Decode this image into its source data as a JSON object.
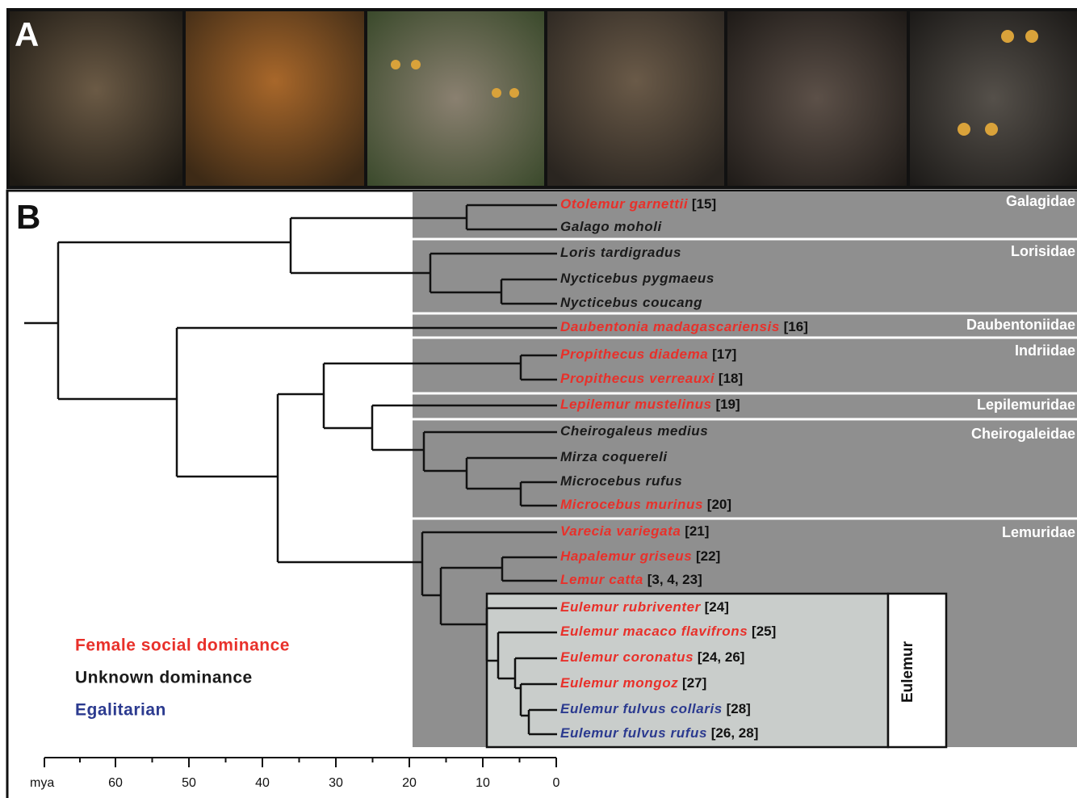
{
  "panel_a": {
    "label": "A"
  },
  "panel_b": {
    "label": "B"
  },
  "taxa": [
    {
      "name": "Otolemur garnettii",
      "ref": "[15]",
      "color": "#e8302a"
    },
    {
      "name": "Galago moholi",
      "color": "#1a1a1a"
    },
    {
      "name": "Loris tardigradus",
      "color": "#1a1a1a"
    },
    {
      "name": "Nycticebus pygmaeus",
      "color": "#1a1a1a"
    },
    {
      "name": "Nycticebus coucang",
      "color": "#1a1a1a"
    },
    {
      "name": "Daubentonia madagascariensis",
      "ref": "[16]",
      "color": "#e8302a"
    },
    {
      "name": "Propithecus diadema",
      "ref": "[17]",
      "color": "#e8302a"
    },
    {
      "name": "Propithecus verreauxi",
      "ref": "[18]",
      "color": "#e8302a"
    },
    {
      "name": "Lepilemur mustelinus",
      "ref": "[19]",
      "color": "#e8302a"
    },
    {
      "name": "Cheirogaleus medius",
      "color": "#1a1a1a"
    },
    {
      "name": "Mirza coquereli",
      "color": "#1a1a1a"
    },
    {
      "name": "Microcebus rufus",
      "color": "#1a1a1a"
    },
    {
      "name": "Microcebus murinus",
      "ref": "[20]",
      "color": "#e8302a"
    },
    {
      "name": "Varecia variegata",
      "ref": "[21]",
      "color": "#e8302a"
    },
    {
      "name": "Hapalemur griseus",
      "ref": "[22]",
      "color": "#e8302a"
    },
    {
      "name": "Lemur catta",
      "ref": "[3, 4, 23]",
      "color": "#e8302a"
    },
    {
      "name": "Eulemur rubriventer",
      "ref": "[24]",
      "color": "#e8302a"
    },
    {
      "name": "Eulemur macaco flavifrons",
      "ref": "[25]",
      "color": "#e8302a"
    },
    {
      "name": "Eulemur coronatus",
      "ref": "[24, 26]",
      "color": "#e8302a"
    },
    {
      "name": "Eulemur mongoz",
      "ref": "[27]",
      "color": "#e8302a"
    },
    {
      "name": "Eulemur fulvus collaris",
      "ref": "[28]",
      "color": "#2b3a8f"
    },
    {
      "name": "Eulemur fulvus rufus",
      "ref": "[26, 28]",
      "color": "#2b3a8f"
    }
  ],
  "families": [
    "Galagidae",
    "Lorisidae",
    "Daubentoniidae",
    "Indriidae",
    "Lepilemuridae",
    "Cheirogaleidae",
    "Lemuridae"
  ],
  "clade": "Eulemur",
  "legend": [
    {
      "label": "Female social dominance",
      "color": "#e8302a"
    },
    {
      "label": "Unknown dominance",
      "color": "#1a1a1a"
    },
    {
      "label": "Egalitarian",
      "color": "#2b3a8f"
    }
  ],
  "axis": {
    "unit": "mya",
    "ticks": [
      60,
      50,
      40,
      30,
      20,
      10,
      0
    ]
  }
}
